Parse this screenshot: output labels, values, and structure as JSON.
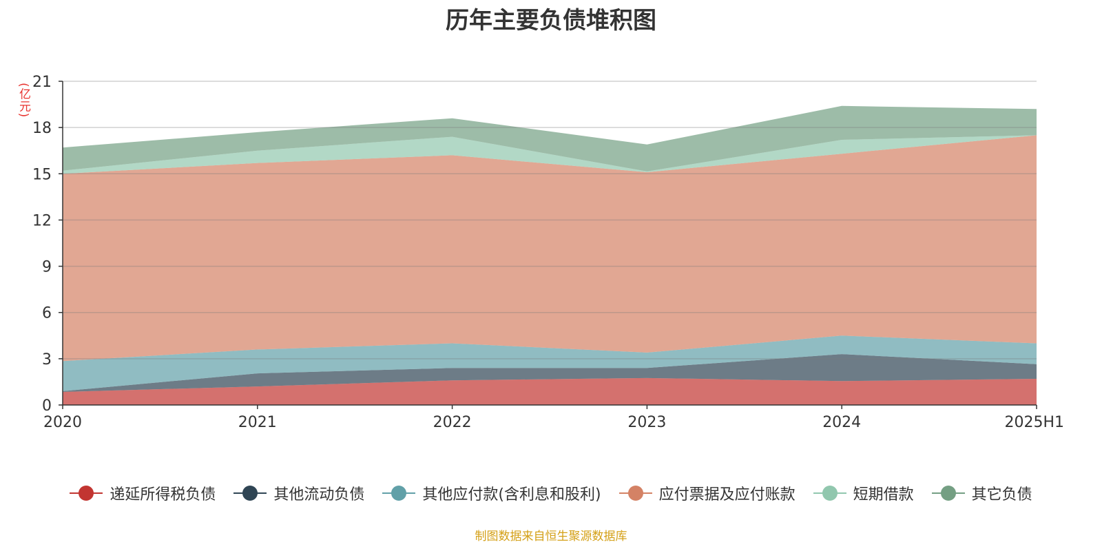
{
  "title": "历年主要负债堆积图",
  "unit_label": "(亿元)",
  "source": "制图数据来自恒生聚源数据库",
  "chart_data": {
    "type": "area",
    "stacked": true,
    "categories": [
      "2020",
      "2021",
      "2022",
      "2023",
      "2024",
      "2025H1"
    ],
    "ylim": [
      0,
      21
    ],
    "yticks": [
      "0",
      "3",
      "6",
      "9",
      "12",
      "15",
      "18",
      "21"
    ],
    "grid": true,
    "legend_position": "bottom",
    "series": [
      {
        "name": "递延所得税负债",
        "color": "#c23531",
        "values": [
          0.85,
          1.2,
          1.6,
          1.75,
          1.55,
          1.7
        ]
      },
      {
        "name": "其他流动负债",
        "color": "#2f4554",
        "values": [
          0.05,
          0.85,
          0.8,
          0.65,
          1.75,
          0.95
        ]
      },
      {
        "name": "其他应付款(含利息和股利)",
        "color": "#61a0a8",
        "values": [
          1.95,
          1.55,
          1.6,
          1.0,
          1.2,
          1.35
        ]
      },
      {
        "name": "应付票据及应付账款",
        "color": "#d48265",
        "values": [
          12.15,
          12.1,
          12.2,
          11.7,
          11.8,
          13.5
        ]
      },
      {
        "name": "短期借款",
        "color": "#91c7ae",
        "values": [
          0.2,
          0.8,
          1.2,
          0.05,
          0.9,
          0.0
        ]
      },
      {
        "name": "其它负债",
        "color": "#749f83",
        "values": [
          1.5,
          1.2,
          1.2,
          1.75,
          2.2,
          1.7
        ]
      }
    ]
  }
}
